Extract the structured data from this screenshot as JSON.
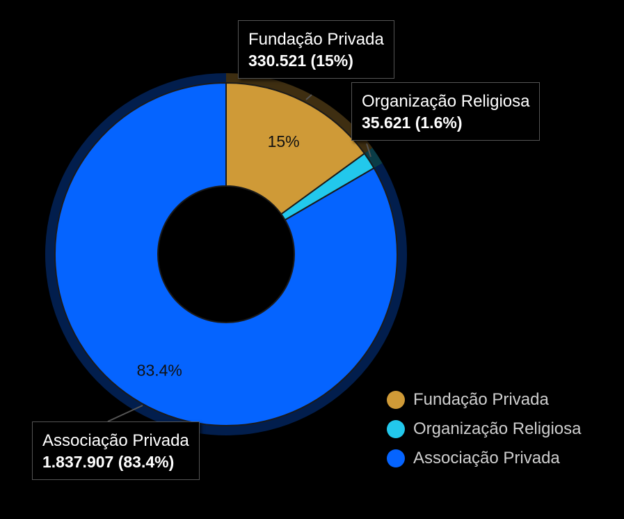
{
  "chart_data": {
    "type": "pie",
    "donut": true,
    "categories": [
      "Fundação Privada",
      "Organização Religiosa",
      "Associação Privada"
    ],
    "values": [
      330521,
      35621,
      1837907
    ],
    "value_labels": [
      "330.521",
      "35.621",
      "1.837.907"
    ],
    "percent_labels": [
      "15%",
      "1.6%",
      "83.4%"
    ],
    "slice_labels": [
      "15%",
      "",
      "83.4%"
    ],
    "colors": [
      "#cf9a37",
      "#22c8ec",
      "#0564ff"
    ],
    "legend_position": "bottom-right"
  },
  "callouts": [
    {
      "name": "Fundação Privada",
      "value": "330.521 (15%)"
    },
    {
      "name": "Organização Religiosa",
      "value": "35.621 (1.6%)"
    },
    {
      "name": "Associação Privada",
      "value": "1.837.907 (83.4%)"
    }
  ],
  "legend": [
    {
      "label": "Fundação Privada",
      "color": "#cf9a37"
    },
    {
      "label": "Organização Religiosa",
      "color": "#22c8ec"
    },
    {
      "label": "Associação Privada",
      "color": "#0564ff"
    }
  ]
}
